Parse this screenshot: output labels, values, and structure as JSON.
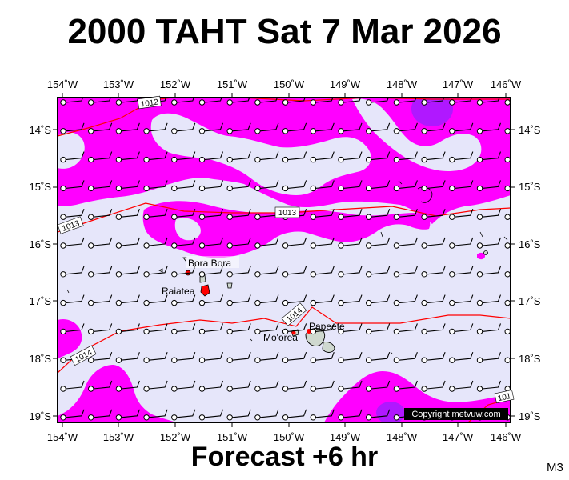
{
  "title": "2000 TAHT Sat 7 Mar 2026",
  "footer": "Forecast +6 hr",
  "model": "M3",
  "copyright": "Copyright metvuw.com",
  "colors": {
    "background": "#e6e6fa",
    "rain": "#ff00ff",
    "heavy_rain": "#a21cff",
    "isobar": "#ff0000",
    "land": "#cfd8cf"
  },
  "axes": {
    "lon_labels": [
      "154˚W",
      "153˚W",
      "152˚W",
      "151˚W",
      "150˚W",
      "149˚W",
      "148˚W",
      "147˚W",
      "146˚W"
    ],
    "lat_labels": [
      "14˚S",
      "15˚S",
      "16˚S",
      "17˚S",
      "18˚S",
      "19˚S"
    ]
  },
  "places": [
    {
      "name": "Bora Bora"
    },
    {
      "name": "Raiatea"
    },
    {
      "name": "Mo'orea"
    },
    {
      "name": "Papeete"
    }
  ],
  "isobar_labels": [
    "1012",
    "1013",
    "1013",
    "1014",
    "1014",
    "101"
  ],
  "wind_barbs": {
    "symbol": "calm-circle-with-barb",
    "rows": 12,
    "cols": 17
  }
}
